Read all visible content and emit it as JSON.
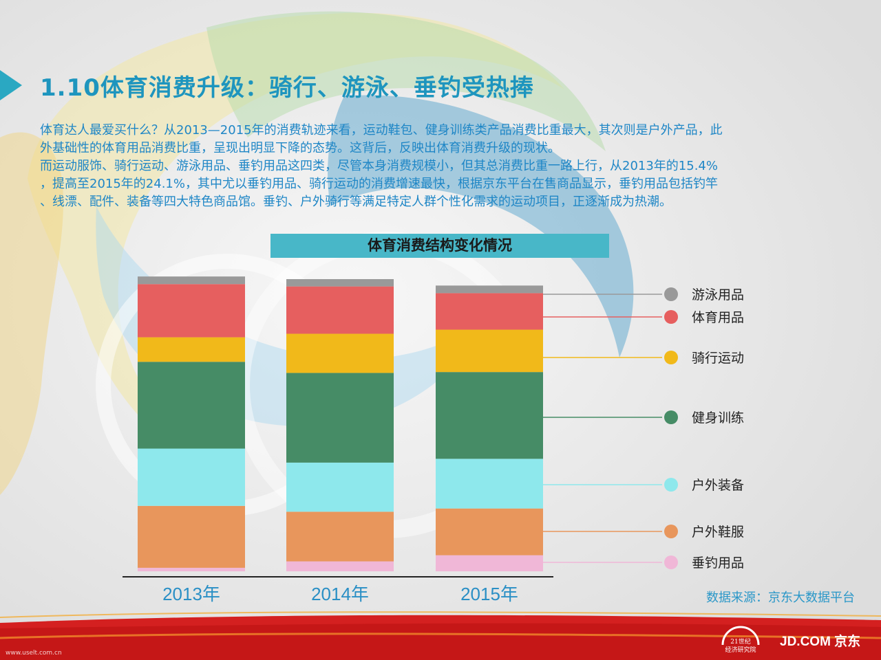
{
  "page": {
    "title": "1.10体育消费升级：骑行、游泳、垂钓受热捧",
    "paragraphs": [
      "体育达人最爱买什么？从2013—2015年的消费轨迹来看，运动鞋包、健身训练类产品消费比重最大，其次则是户外产品，此",
      "外基础性的体育用品消费比重，呈现出明显下降的态势。这背后，反映出体育消费升级的现状。",
      "而运动服饰、骑行运动、游泳用品、垂钓用品这四类，尽管本身消费规模小，但其总消费比重一路上行，从2013年的15.4%",
      "，提高至2015年的24.1%，其中尤以垂钓用品、骑行运动的消费增速最快，根据京东平台在售商品显示，垂钓用品包括钓竿",
      "、线漂、配件、装备等四大特色商品馆。垂钓、户外骑行等满足特定人群个性化需求的运动项目，正逐渐成为热潮。"
    ],
    "source": "数据来源：京东大数据平台",
    "logo_left": "21世纪经济研究院",
    "logo_right": "JD.COM 京东",
    "watermark": "www.uselt.com.cn",
    "colors": {
      "title": "#1e95be",
      "text": "#1e86c6",
      "chart_title_bg": "#48b7c8",
      "band_red": "#d42020"
    }
  },
  "chart_data": {
    "type": "bar",
    "stacked": true,
    "title": "体育消费结构变化情况",
    "categories": [
      "2013年",
      "2014年",
      "2015年"
    ],
    "series": [
      {
        "name": "垂钓用品",
        "color": "#f0b7d7",
        "values": [
          1.2,
          3.4,
          5.5
        ]
      },
      {
        "name": "户外鞋服",
        "color": "#e8965c",
        "values": [
          21.2,
          17.0,
          16.0
        ]
      },
      {
        "name": "户外装备",
        "color": "#8ee8ec",
        "values": [
          19.6,
          16.8,
          17.0
        ]
      },
      {
        "name": "健身训练",
        "color": "#468c66",
        "values": [
          29.7,
          30.7,
          29.7
        ]
      },
      {
        "name": "骑行运动",
        "color": "#f1b91a",
        "values": [
          8.4,
          13.4,
          14.5
        ]
      },
      {
        "name": "体育用品",
        "color": "#e65f5f",
        "values": [
          18.2,
          16.2,
          12.5
        ]
      },
      {
        "name": "游泳用品",
        "color": "#999999",
        "values": [
          2.6,
          2.5,
          2.6
        ]
      }
    ],
    "ylim": [
      0,
      100
    ],
    "legend": "right",
    "grid": false
  }
}
